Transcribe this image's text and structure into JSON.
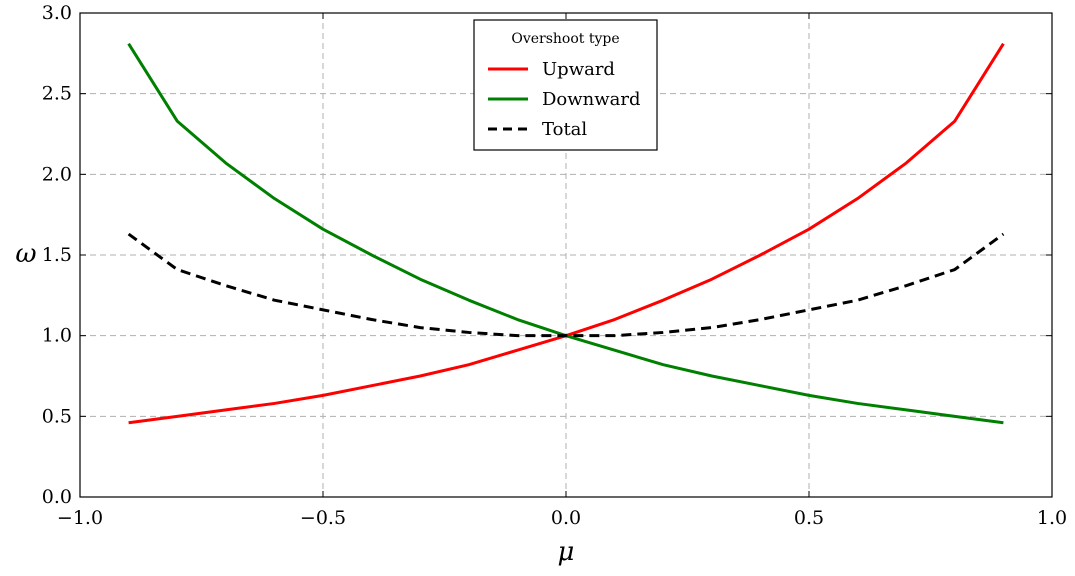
{
  "chart_data": {
    "type": "line",
    "xlabel": "μ",
    "ylabel": "ω",
    "xlim": [
      -1.0,
      1.0
    ],
    "ylim": [
      0.0,
      3.0
    ],
    "xticks": [
      "−1.0",
      "−0.5",
      "0.0",
      "0.5",
      "1.0"
    ],
    "yticks": [
      "0.0",
      "0.5",
      "1.0",
      "1.5",
      "2.0",
      "2.5",
      "3.0"
    ],
    "grid": true,
    "legend": {
      "title": "Overshoot type",
      "position": "top-center"
    },
    "x": [
      -0.9,
      -0.8,
      -0.7,
      -0.6,
      -0.5,
      -0.4,
      -0.3,
      -0.2,
      -0.1,
      0.0,
      0.1,
      0.2,
      0.3,
      0.4,
      0.5,
      0.6,
      0.7,
      0.8,
      0.9
    ],
    "series": [
      {
        "name": "Upward",
        "color": "#ff0000",
        "style": "solid",
        "values": [
          0.46,
          0.5,
          0.54,
          0.58,
          0.63,
          0.69,
          0.75,
          0.82,
          0.91,
          1.0,
          1.1,
          1.22,
          1.35,
          1.5,
          1.66,
          1.85,
          2.07,
          2.33,
          2.81
        ]
      },
      {
        "name": "Downward",
        "color": "#008000",
        "style": "solid",
        "values": [
          2.81,
          2.33,
          2.07,
          1.85,
          1.66,
          1.5,
          1.35,
          1.22,
          1.1,
          1.0,
          0.91,
          0.82,
          0.75,
          0.69,
          0.63,
          0.58,
          0.54,
          0.5,
          0.46
        ]
      },
      {
        "name": "Total",
        "color": "#000000",
        "style": "dashed",
        "values": [
          1.63,
          1.41,
          1.31,
          1.22,
          1.16,
          1.1,
          1.05,
          1.02,
          1.0,
          1.0,
          1.0,
          1.02,
          1.05,
          1.1,
          1.16,
          1.22,
          1.31,
          1.41,
          1.63
        ]
      }
    ]
  }
}
